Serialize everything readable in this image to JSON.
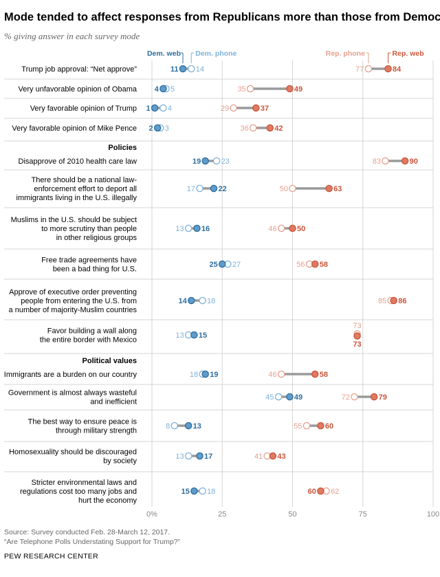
{
  "title": "Mode tended to affect responses from Republicans more than those from Democrats",
  "subtitle": "% giving answer in each survey mode",
  "colors": {
    "dem_web": "#2c6e9f",
    "dem_phone": "#7eb1d9",
    "rep_web": "#c9553b",
    "rep_phone": "#e5a08e",
    "connector": "#9a9a9a",
    "grid": "#d6d6d6",
    "separator": "#c8c8c8"
  },
  "legend": {
    "dem_web": "Dem. web",
    "dem_phone": "Dem. phone",
    "rep_phone": "Rep. phone",
    "rep_web": "Rep. web"
  },
  "chart_data": {
    "type": "dot-plot",
    "xlim": [
      0,
      100
    ],
    "x_ticks": [
      "0%",
      "25",
      "50",
      "75",
      "100"
    ],
    "series": [
      "Dem. web",
      "Dem. phone",
      "Rep. phone",
      "Rep. web"
    ],
    "sections": [
      {
        "label": "",
        "rows": [
          {
            "label": [
              "Trump job approval: “Net approve”"
            ],
            "dem_web": 11,
            "dem_phone": 14,
            "rep_phone": 77,
            "rep_web": 84
          },
          {
            "label": [
              "Very unfavorable opinion of Obama"
            ],
            "dem_web": 4,
            "dem_phone": 5,
            "rep_phone": 35,
            "rep_web": 49
          },
          {
            "label": [
              "Very favorable opinion of Trump"
            ],
            "dem_web": 1,
            "dem_phone": 4,
            "rep_phone": 29,
            "rep_web": 37
          },
          {
            "label": [
              "Very favorable opinion of Mike Pence"
            ],
            "dem_web": 2,
            "dem_phone": 3,
            "rep_phone": 36,
            "rep_web": 42
          }
        ]
      },
      {
        "label": "Policies",
        "rows": [
          {
            "label": [
              "Disapprove of 2010 health care law"
            ],
            "dem_web": 19,
            "dem_phone": 23,
            "rep_phone": 83,
            "rep_web": 90
          },
          {
            "label": [
              "There should be a national law-",
              "enforcement effort to deport all",
              "immigrants living in the U.S. illegally"
            ],
            "dem_web": 22,
            "dem_phone": 17,
            "rep_phone": 50,
            "rep_web": 63
          },
          {
            "label": [
              "Muslims in the U.S. should be subject",
              "to more scrutiny than people",
              "in other religious groups"
            ],
            "dem_web": 16,
            "dem_phone": 13,
            "rep_phone": 46,
            "rep_web": 50
          },
          {
            "label": [
              "Free trade agreements have",
              "been a bad thing for U.S."
            ],
            "dem_web": 25,
            "dem_phone": 27,
            "rep_phone": 56,
            "rep_web": 58
          },
          {
            "label": [
              "Approve of executive order preventing",
              "people from entering the U.S. from",
              "a number of majority-Muslim countries"
            ],
            "dem_web": 14,
            "dem_phone": 18,
            "rep_phone": 85,
            "rep_web": 86
          },
          {
            "label": [
              "Favor building a wall along",
              "the entire border with Mexico"
            ],
            "dem_web": 15,
            "dem_phone": 13,
            "rep_phone": 73,
            "rep_web": 73
          }
        ]
      },
      {
        "label": "Political values",
        "rows": [
          {
            "label": [
              "Immigrants are a burden on our country"
            ],
            "dem_web": 19,
            "dem_phone": 18,
            "rep_phone": 46,
            "rep_web": 58
          },
          {
            "label": [
              "Government is almost always wasteful",
              "and inefficient"
            ],
            "dem_web": 49,
            "dem_phone": 45,
            "rep_phone": 72,
            "rep_web": 79
          },
          {
            "label": [
              "The best way to ensure peace is",
              "through military strength"
            ],
            "dem_web": 13,
            "dem_phone": 8,
            "rep_phone": 55,
            "rep_web": 60
          },
          {
            "label": [
              "Homosexuality should be discouraged",
              "by society"
            ],
            "dem_web": 17,
            "dem_phone": 13,
            "rep_phone": 41,
            "rep_web": 43
          },
          {
            "label": [
              "Stricter environmental laws and",
              "regulations cost too many jobs and",
              "hurt the economy"
            ],
            "dem_web": 15,
            "dem_phone": 18,
            "rep_phone": 62,
            "rep_web": 60
          }
        ]
      }
    ]
  },
  "footer": {
    "source": "Source: Survey conducted Feb. 28-March 12, 2017.",
    "report": "“Are Telephone Polls Understating Support for Trump?”",
    "brand": "PEW RESEARCH CENTER"
  }
}
